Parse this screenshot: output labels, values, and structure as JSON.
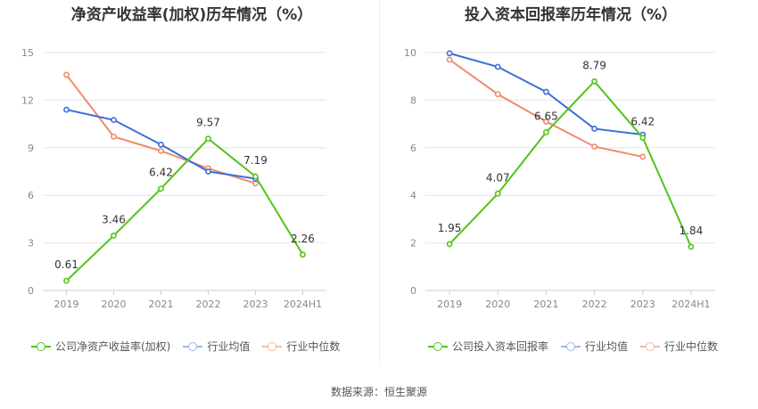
{
  "colors": {
    "company": "#52c41a",
    "industry_avg": "#3a6fd8",
    "industry_median": "#f08a6b"
  },
  "source_text": "数据来源：恒生聚源",
  "chart_data": [
    {
      "type": "line",
      "title": "净资产收益率(加权)历年情况（%）",
      "x": [
        "2019",
        "2020",
        "2021",
        "2022",
        "2023",
        "2024H1"
      ],
      "yticks": [
        "0",
        "3",
        "6",
        "9",
        "12",
        "15"
      ],
      "ylim": [
        0,
        15
      ],
      "grid": true,
      "legend_position": "bottom",
      "series": [
        {
          "name": "公司净资产收益率(加权)",
          "values": [
            0.61,
            3.46,
            6.42,
            9.57,
            7.19,
            2.26
          ],
          "labels": [
            "0.61",
            "3.46",
            "6.42",
            "9.57",
            "7.19",
            "2.26"
          ]
        },
        {
          "name": "行业均值",
          "values": [
            11.4,
            10.75,
            9.2,
            7.5,
            7.05,
            null
          ]
        },
        {
          "name": "行业中位数",
          "values": [
            13.6,
            9.7,
            8.8,
            7.7,
            6.75,
            null
          ]
        }
      ]
    },
    {
      "type": "line",
      "title": "投入资本回报率历年情况（%）",
      "x": [
        "2019",
        "2020",
        "2021",
        "2022",
        "2023",
        "2024H1"
      ],
      "yticks": [
        "0",
        "2",
        "4",
        "6",
        "8",
        "10"
      ],
      "ylim": [
        0,
        10
      ],
      "grid": true,
      "legend_position": "bottom",
      "series": [
        {
          "name": "公司投入资本回报率",
          "values": [
            1.95,
            4.07,
            6.65,
            8.79,
            6.42,
            1.84
          ],
          "labels": [
            "1.95",
            "4.07",
            "6.65",
            "8.79",
            "6.42",
            "1.84"
          ]
        },
        {
          "name": "行业均值",
          "values": [
            9.97,
            9.4,
            8.35,
            6.8,
            6.55,
            null
          ]
        },
        {
          "name": "行业中位数",
          "values": [
            9.7,
            8.25,
            7.1,
            6.05,
            5.62,
            null
          ]
        }
      ]
    }
  ]
}
